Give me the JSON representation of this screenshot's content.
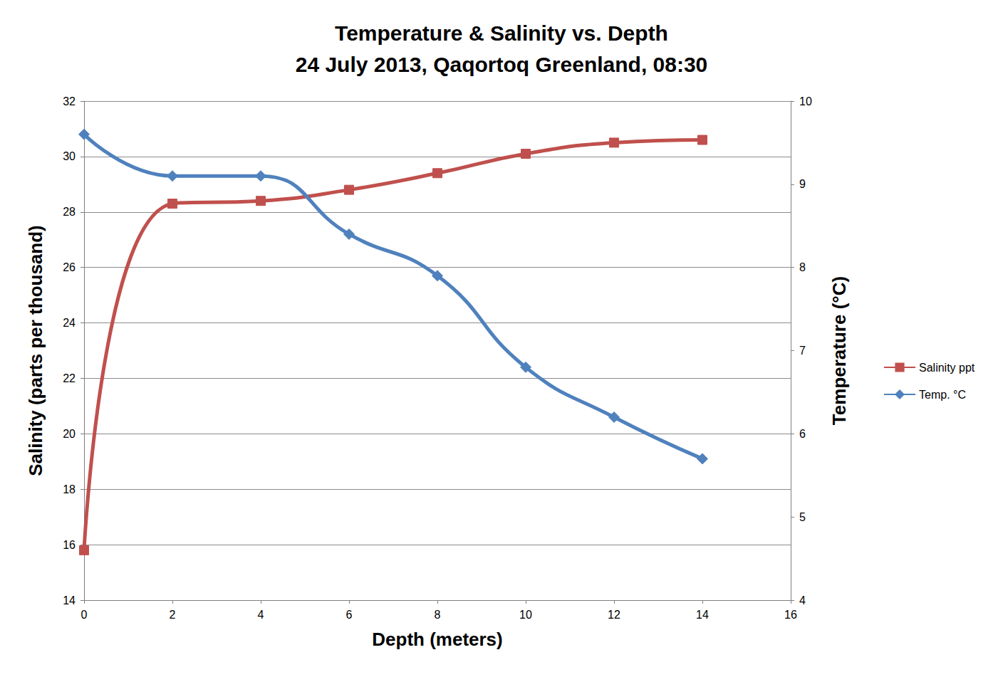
{
  "chart_data": {
    "type": "line",
    "title": "Temperature & Salinity vs. Depth",
    "subtitle": "24 July 2013, Qaqortoq Greenland, 08:30",
    "xlabel": "Depth (meters)",
    "ylabel": "Salinity (parts per thousand)",
    "y2label": "Temperature (°C)",
    "x": [
      0,
      2,
      4,
      6,
      8,
      10,
      12,
      14
    ],
    "series": [
      {
        "name": "Salinity ppt",
        "color": "#c0504d",
        "marker": "square",
        "axis": "y",
        "values": [
          15.8,
          28.3,
          28.4,
          28.8,
          29.4,
          30.1,
          30.5,
          30.6
        ]
      },
      {
        "name": "Temp. °C",
        "color": "#4f81bd",
        "marker": "diamond",
        "axis": "y2",
        "values": [
          9.6,
          9.1,
          9.1,
          8.4,
          7.9,
          6.8,
          6.2,
          5.7
        ]
      }
    ],
    "xlim": [
      0,
      16
    ],
    "xticks": [
      0,
      2,
      4,
      6,
      8,
      10,
      12,
      14,
      16
    ],
    "ylim": [
      14,
      32
    ],
    "yticks": [
      14,
      16,
      18,
      20,
      22,
      24,
      26,
      28,
      30,
      32
    ],
    "y2lim": [
      4,
      10
    ],
    "y2ticks": [
      4,
      5,
      6,
      7,
      8,
      9,
      10
    ],
    "grid": true,
    "legend": "right",
    "line_style": "smooth"
  }
}
